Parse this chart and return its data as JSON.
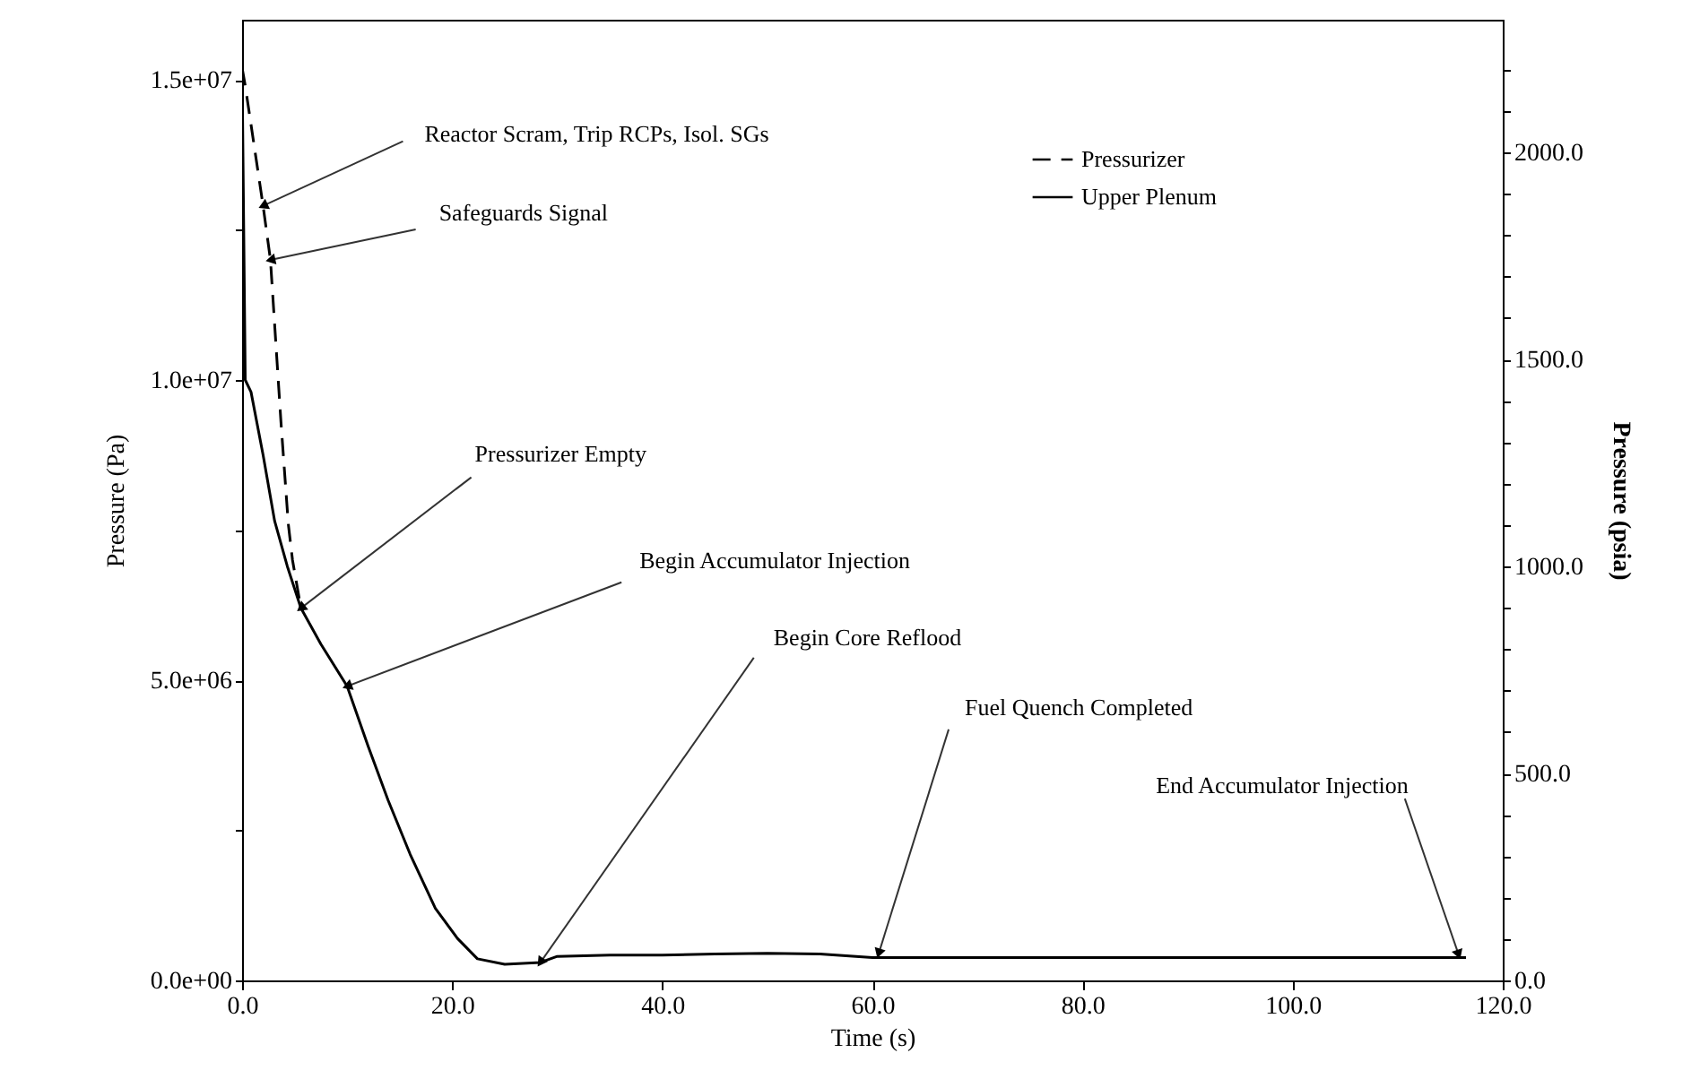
{
  "chart_data": {
    "type": "line",
    "xlabel": "Time (s)",
    "ylabel": "Pressure (Pa)",
    "y2label": "Pressure (psia)",
    "xlim": [
      0,
      120
    ],
    "ylim": [
      0,
      16000000
    ],
    "y2lim": [
      0,
      2320.6
    ],
    "xticks": [
      {
        "value": 0,
        "label": "0.0"
      },
      {
        "value": 20,
        "label": "20.0"
      },
      {
        "value": 40,
        "label": "40.0"
      },
      {
        "value": 60,
        "label": "60.0"
      },
      {
        "value": 80,
        "label": "80.0"
      },
      {
        "value": 100,
        "label": "100.0"
      },
      {
        "value": 120,
        "label": "120.0"
      }
    ],
    "yticks": [
      {
        "value": 0,
        "label": "0.0e+00"
      },
      {
        "value": 2500000,
        "label": null
      },
      {
        "value": 5000000,
        "label": "5.0e+06"
      },
      {
        "value": 7500000,
        "label": null
      },
      {
        "value": 10000000,
        "label": "1.0e+07"
      },
      {
        "value": 12500000,
        "label": null
      },
      {
        "value": 15000000,
        "label": "1.5e+07"
      }
    ],
    "y2ticks": [
      {
        "value": 0,
        "label": "0.0"
      },
      {
        "value": 100,
        "label": null
      },
      {
        "value": 200,
        "label": null
      },
      {
        "value": 300,
        "label": null
      },
      {
        "value": 400,
        "label": null
      },
      {
        "value": 500,
        "label": "500.0"
      },
      {
        "value": 600,
        "label": null
      },
      {
        "value": 700,
        "label": null
      },
      {
        "value": 800,
        "label": null
      },
      {
        "value": 900,
        "label": null
      },
      {
        "value": 1000,
        "label": "1000.0"
      },
      {
        "value": 1100,
        "label": null
      },
      {
        "value": 1200,
        "label": null
      },
      {
        "value": 1300,
        "label": null
      },
      {
        "value": 1400,
        "label": null
      },
      {
        "value": 1500,
        "label": "1500.0"
      },
      {
        "value": 1600,
        "label": null
      },
      {
        "value": 1700,
        "label": null
      },
      {
        "value": 1800,
        "label": null
      },
      {
        "value": 1900,
        "label": null
      },
      {
        "value": 2000,
        "label": "2000.0"
      },
      {
        "value": 2100,
        "label": null
      },
      {
        "value": 2200,
        "label": null
      }
    ],
    "grid": false,
    "legend": "top right",
    "marker": "none",
    "series": [
      {
        "name": "Pressurizer",
        "color": "#000000",
        "line_style": "dashed",
        "x": [
          0,
          0.3,
          2.0,
          2.7,
          3.7,
          4.4,
          4.8,
          5.6
        ],
        "values": [
          15200000,
          14900000,
          12900000,
          12000000,
          9300000,
          7600000,
          7000000,
          6200000
        ]
      },
      {
        "name": "Upper Plenum",
        "color": "#000000",
        "line_style": "solid",
        "x": [
          0,
          0.3,
          0.85,
          2.0,
          3.1,
          4.3,
          5.6,
          7.5,
          10.0,
          12,
          13.9,
          16,
          18.4,
          20.5,
          22.4,
          25,
          28.4,
          30,
          35,
          40,
          45,
          50,
          55,
          60,
          70,
          80,
          90,
          100,
          110,
          116.5
        ],
        "values": [
          15200000,
          10000000,
          9800000,
          8750000,
          7650000,
          6900000,
          6200000,
          5600000,
          4900000,
          3900000,
          3000000,
          2100000,
          1200000,
          700000,
          360000,
          270000,
          300000,
          400000,
          420000,
          420000,
          440000,
          450000,
          440000,
          380000,
          380000,
          380000,
          380000,
          380000,
          380000,
          380000
        ]
      }
    ],
    "annotations": [
      {
        "text": "Reactor Scram, Trip RCPs, Isol. SGs",
        "x": 2.0,
        "y": 12900000
      },
      {
        "text": "Safeguards Signal",
        "x": 2.7,
        "y": 12000000
      },
      {
        "text": "Pressurizer Empty",
        "x": 5.6,
        "y": 6200000
      },
      {
        "text": "Begin Accumulator Injection",
        "x": 10.0,
        "y": 4900000
      },
      {
        "text": "Begin Core Reflood",
        "x": 28.4,
        "y": 300000
      },
      {
        "text": "Fuel Quench Completed",
        "x": 60.6,
        "y": 450000
      },
      {
        "text": "End Accumulator Injection",
        "x": 115.8,
        "y": 430000
      }
    ]
  }
}
